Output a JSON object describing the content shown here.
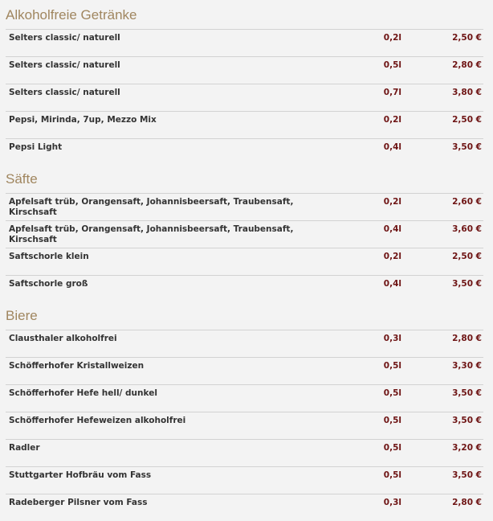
{
  "sections": [
    {
      "title": "Alkoholfreie Getränke",
      "items": [
        {
          "name": "Selters classic/ naturell",
          "volume": "0,2l",
          "price": "2,50 €"
        },
        {
          "name": "Selters classic/ naturell",
          "volume": "0,5l",
          "price": "2,80 €"
        },
        {
          "name": "Selters classic/ naturell",
          "volume": "0,7l",
          "price": "3,80 €"
        },
        {
          "name": "Pepsi, Mirinda, 7up, Mezzo Mix",
          "volume": "0,2l",
          "price": "2,50 €"
        },
        {
          "name": "Pepsi Light",
          "volume": "0,4l",
          "price": "3,50 €"
        }
      ]
    },
    {
      "title": "Säfte",
      "items": [
        {
          "name": "Apfelsaft trüb, Orangensaft, Johannisbeersaft, Traubensaft, Kirschsaft",
          "volume": "0,2l",
          "price": "2,60 €"
        },
        {
          "name": "Apfelsaft trüb, Orangensaft, Johannisbeersaft, Traubensaft, Kirschsaft",
          "volume": "0,4l",
          "price": "3,60 €"
        },
        {
          "name": "Saftschorle klein",
          "volume": "0,2l",
          "price": "2,50 €"
        },
        {
          "name": "Saftschorle groß",
          "volume": "0,4l",
          "price": "3,50 €"
        }
      ]
    },
    {
      "title": "Biere",
      "items": [
        {
          "name": "Clausthaler alkoholfrei",
          "volume": "0,3l",
          "price": "2,80 €"
        },
        {
          "name": "Schöfferhofer Kristallweizen",
          "volume": "0,5l",
          "price": "3,30 €"
        },
        {
          "name": "Schöfferhofer Hefe hell/ dunkel",
          "volume": "0,5l",
          "price": "3,50 €"
        },
        {
          "name": "Schöfferhofer Hefeweizen alkoholfrei",
          "volume": "0,5l",
          "price": "3,50 €"
        },
        {
          "name": "Radler",
          "volume": "0,5l",
          "price": "3,20 €"
        },
        {
          "name": "Stuttgarter Hofbräu vom Fass",
          "volume": "0,5l",
          "price": "3,50 €"
        },
        {
          "name": "Radeberger Pilsner vom Fass",
          "volume": "0,3l",
          "price": "2,80 €"
        }
      ]
    }
  ]
}
